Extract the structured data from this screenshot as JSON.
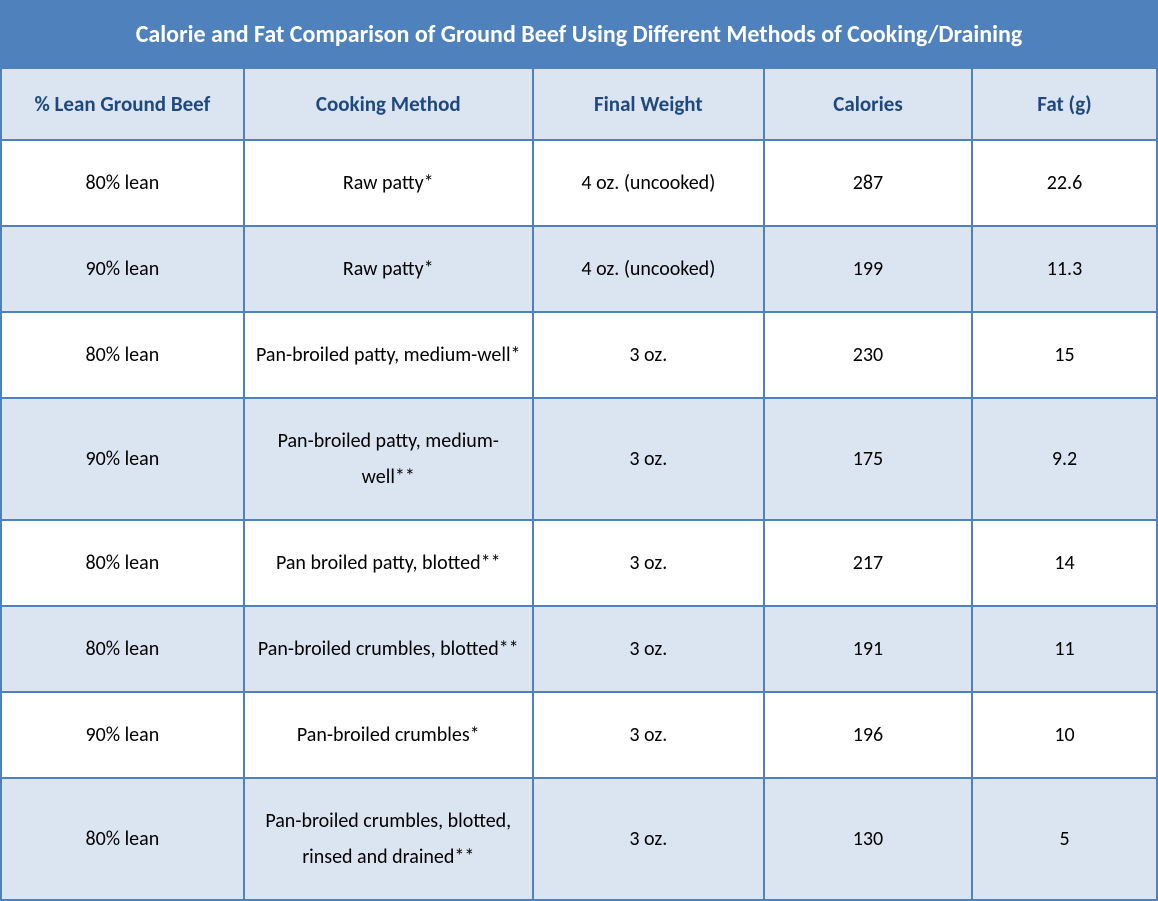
{
  "table": {
    "title": "Calorie and Fat Comparison of Ground Beef Using Different Methods of Cooking/Draining",
    "columns": [
      "% Lean Ground Beef",
      "Cooking Method",
      "Final Weight",
      "Calories",
      "Fat (g)"
    ],
    "rows": [
      {
        "lean": "80% lean",
        "method": "Raw patty*",
        "weight": "4 oz. (uncooked)",
        "calories": "287",
        "fat": "22.6"
      },
      {
        "lean": "90% lean",
        "method": "Raw patty*",
        "weight": "4 oz. (uncooked)",
        "calories": "199",
        "fat": "11.3"
      },
      {
        "lean": "80% lean",
        "method": "Pan-broiled patty, medium-well*",
        "weight": "3 oz.",
        "calories": "230",
        "fat": "15"
      },
      {
        "lean": "90% lean",
        "method": "Pan-broiled patty, medium-well**",
        "weight": "3 oz.",
        "calories": "175",
        "fat": "9.2"
      },
      {
        "lean": "80% lean",
        "method": "Pan broiled patty, blotted**",
        "weight": "3 oz.",
        "calories": "217",
        "fat": "14"
      },
      {
        "lean": "80% lean",
        "method": "Pan-broiled crumbles, blotted**",
        "weight": "3 oz.",
        "calories": "191",
        "fat": "11"
      },
      {
        "lean": "90% lean",
        "method": "Pan-broiled crumbles*",
        "weight": "3 oz.",
        "calories": "196",
        "fat": "10"
      },
      {
        "lean": "80% lean",
        "method": "Pan-broiled crumbles, blotted, rinsed and drained**",
        "weight": "3 oz.",
        "calories": "130",
        "fat": "5"
      }
    ],
    "styling": {
      "type": "table",
      "title_bg": "#4f81bd",
      "title_color": "#ffffff",
      "title_fontsize": 24,
      "header_bg": "#dbe5f1",
      "header_color": "#1f497d",
      "header_fontsize": 21,
      "cell_fontsize": 20,
      "cell_color": "#000000",
      "row_even_bg": "#ffffff",
      "row_odd_bg": "#dbe5f1",
      "border_color": "#4f81bd",
      "border_width": 2,
      "column_widths_pct": [
        21,
        25,
        20,
        18,
        16
      ],
      "text_align": "center",
      "font_family": "Calibri"
    }
  }
}
